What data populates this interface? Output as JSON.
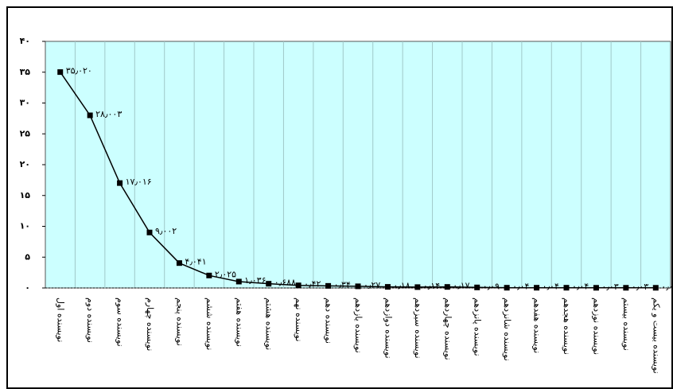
{
  "chart_data": {
    "type": "line",
    "categories": [
      "نویسنده اول",
      "نویسنده دوم",
      "نویسنده سوم",
      "نویسنده چهارم",
      "نویسنده پنجم",
      "نویسنده ششم",
      "نویسنده هفتم",
      "نویسنده هشتم",
      "نویسنده نهم",
      "نویسنده دهم",
      "نویسنده یازدهم",
      "نویسنده دوازدهم",
      "نویسنده سیزدهم",
      "نویسنده چهاردهم",
      "نویسنده پانزدهم",
      "نویسنده شانزدهم",
      "نویسنده هفدهم",
      "نویسنده هجدهم",
      "نویسنده نوزدهم",
      "نویسنده بیستم",
      "نویسنده بیست و یکم"
    ],
    "values": [
      35.02,
      28.003,
      17.016,
      9.002,
      4.041,
      2.025,
      1.036,
      0.688,
      0.42,
      0.34,
      0.27,
      0.18,
      0.14,
      0.17,
      0.09,
      0.04,
      0.04,
      0.04,
      0.03,
      0.03,
      0.03
    ],
    "value_labels": [
      "۳۵٫۰۲۰",
      "۲۸٫۰۰۳",
      "۱۷٫۰۱۶",
      "۹٫۰۰۲",
      "۴٫۰۴۱",
      "۲٫۰۲۵",
      "۱٫۰۳۶",
      "۰٫۶۸۸",
      "۰٫۴۲",
      "۰٫۳۴",
      "۰٫۲۷",
      "۰٫۱۸",
      "۰٫۱۴",
      "۰٫۱۷",
      "۰٫۰۹",
      "۰٫۰۴",
      "۰٫۰۴",
      "۰٫۰۴",
      "۰٫۰۳",
      "۰٫۰۳",
      "۰٫۰۳"
    ],
    "color": "#000000",
    "ylim": [
      0,
      40
    ],
    "yticks": [
      {
        "value": 0,
        "label": "۰"
      },
      {
        "value": 5,
        "label": "۵"
      },
      {
        "value": 10,
        "label": "۱۰"
      },
      {
        "value": 15,
        "label": "۱۵"
      },
      {
        "value": 20,
        "label": "۲۰"
      },
      {
        "value": 25,
        "label": "۲۵"
      },
      {
        "value": 30,
        "label": "۳۰"
      },
      {
        "value": 35,
        "label": "۳۵"
      },
      {
        "value": 40,
        "label": "۴۰"
      }
    ],
    "grid": true
  }
}
